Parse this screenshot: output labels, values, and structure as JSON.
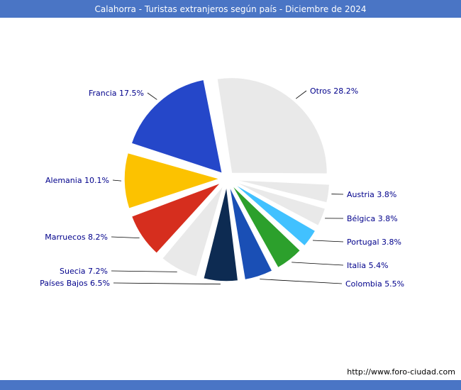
{
  "theme": {
    "accent": "#4a75c5",
    "label_color": "#00008b",
    "line_color": "#000000"
  },
  "chart_data": {
    "type": "pie",
    "title": "Calahorra - Turistas extranjeros según país - Diciembre de 2024",
    "unit": "%",
    "direction": "clockwise",
    "start_angle_deg": -10,
    "legend": "none",
    "slices": [
      {
        "label": "Otros",
        "value": 28.2,
        "color": "#e9e9e9"
      },
      {
        "label": "Austria",
        "value": 3.8,
        "color": "#e9e9e9"
      },
      {
        "label": "Bélgica",
        "value": 3.8,
        "color": "#e9e9e9"
      },
      {
        "label": "Portugal",
        "value": 3.8,
        "color": "#41c1ff"
      },
      {
        "label": "Italia",
        "value": 5.4,
        "color": "#2ca02c"
      },
      {
        "label": "Colombia",
        "value": 5.5,
        "color": "#1a4fb5"
      },
      {
        "label": "Países Bajos",
        "value": 6.5,
        "color": "#0d2b52"
      },
      {
        "label": "Suecia",
        "value": 7.2,
        "color": "#e9e9e9"
      },
      {
        "label": "Marruecos",
        "value": 8.2,
        "color": "#d62e1e"
      },
      {
        "label": "Alemania",
        "value": 10.1,
        "color": "#fcc200"
      },
      {
        "label": "Francia",
        "value": 17.5,
        "color": "#2547c9"
      }
    ]
  },
  "footer": {
    "url": "http://www.foro-ciudad.com"
  }
}
